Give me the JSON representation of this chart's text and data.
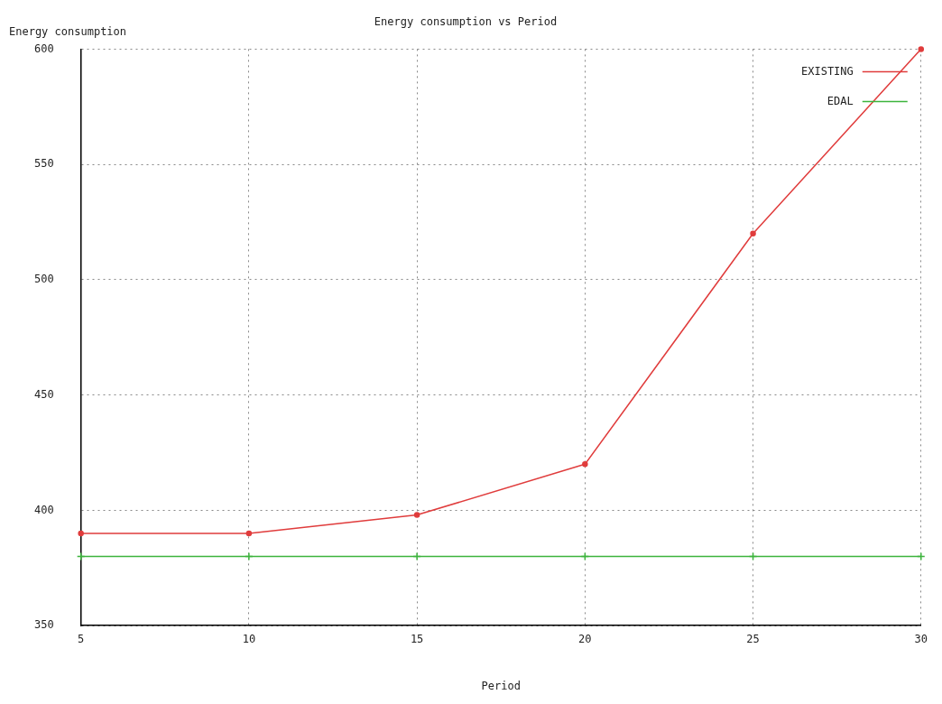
{
  "chart_data": {
    "type": "line",
    "title": "Energy consumption vs Period",
    "xlabel": "Period",
    "ylabel": "Energy consumption",
    "x": [
      5,
      10,
      15,
      20,
      25,
      30
    ],
    "series": [
      {
        "name": "EXISTING",
        "color": "#e03c3c",
        "marker": "circle",
        "values": [
          390,
          390,
          398,
          420,
          520,
          600
        ]
      },
      {
        "name": "EDAL",
        "color": "#3cb43c",
        "marker": "cross",
        "values": [
          380,
          380,
          380,
          380,
          380,
          380
        ]
      }
    ],
    "xlim": [
      5,
      30
    ],
    "xticks": [
      5,
      10,
      15,
      20,
      25,
      30
    ],
    "ylim": [
      350,
      600
    ],
    "yticks": [
      350,
      400,
      450,
      500,
      550,
      600
    ],
    "grid": true,
    "legend": "top right",
    "line_style": "solid"
  }
}
